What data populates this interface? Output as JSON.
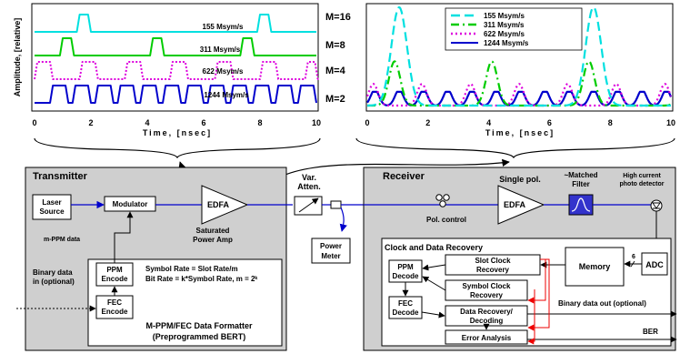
{
  "chart_data": [
    {
      "type": "line",
      "title": "",
      "ylabel": "Amplitude, [relative]",
      "xlabel": "Time, [nsec]",
      "xlim": [
        0,
        10
      ],
      "x_ticks": [
        "0",
        "2",
        "4",
        "6",
        "8",
        "10"
      ],
      "legend": "none",
      "series": [
        {
          "name": "155 Msym/s",
          "m_label": "M=16",
          "color": "#00e0e0",
          "period": 6.4,
          "width": 0.4,
          "first": 1.55
        },
        {
          "name": "311 Msym/s",
          "m_label": "M=8",
          "color": "#00cc00",
          "period": 3.2,
          "width": 0.4,
          "first": 0.95
        },
        {
          "name": "622 Msym/s",
          "m_label": "M=4",
          "color": "#dd00dd",
          "period": 1.6,
          "width": 0.55,
          "first": 0.05
        },
        {
          "name": "1244 Msym/s",
          "m_label": "M=2",
          "color": "#0000cc",
          "period": 0.8,
          "width": 0.55,
          "first": 0.6
        }
      ]
    },
    {
      "type": "line",
      "title": "",
      "xlabel": "Time, [nsec]",
      "xlim": [
        0,
        10
      ],
      "x_ticks": [
        "0",
        "2",
        "4",
        "6",
        "8",
        "10"
      ],
      "legend": "top-right",
      "series": [
        {
          "name": "155 Msym/s",
          "color": "#00e0e0",
          "dash": "10,5",
          "peak": 1.0,
          "period": 6.4,
          "first": 1.05
        },
        {
          "name": "311 Msym/s",
          "color": "#00cc00",
          "dash": "9,4,2,4",
          "peak": 0.45,
          "period": 3.2,
          "first": 0.9
        },
        {
          "name": "622 Msym/s",
          "color": "#dd00dd",
          "dash": "2,3",
          "peak": 0.22,
          "period": 1.6,
          "first": 0.2
        },
        {
          "name": "1244 Msym/s",
          "color": "#0000cc",
          "dash": "",
          "peak": 0.14,
          "period": 0.8,
          "first": 0.25
        }
      ]
    }
  ],
  "diagram": {
    "transmitter": {
      "title": "Transmitter",
      "laser": [
        "Laser",
        "Source"
      ],
      "modulator": "Modulator",
      "edfa": "EDFA",
      "saturated": [
        "Saturated",
        "Power Amp"
      ],
      "mppm_data": "m-PPM data",
      "binary_in": [
        "Binary data",
        "in (optional)"
      ],
      "ppm_encode": [
        "PPM",
        "Encode"
      ],
      "fec_encode": [
        "FEC",
        "Encode"
      ],
      "symbol_rate": "Symbol Rate = Slot Rate/m",
      "bit_rate": "Bit Rate = k*Symbol Rate, m = 2ᵏ",
      "formatter": [
        "M-PPM/FEC Data Formatter",
        "(Preprogrammed BERT)"
      ]
    },
    "link": {
      "attenuator": [
        "Var.",
        "Atten."
      ],
      "power_meter": [
        "Power",
        "Meter"
      ]
    },
    "receiver": {
      "title": "Receiver",
      "pol_control": "Pol. control",
      "single_pol": "Single pol.",
      "edfa": "EDFA",
      "matched_filter": [
        "~Matched",
        "Filter"
      ],
      "detector": [
        "High current",
        "photo detector"
      ],
      "cdr_title": "Clock and Data Recovery",
      "slot_clock": [
        "Slot Clock",
        "Recovery"
      ],
      "symbol_clock": [
        "Symbol Clock",
        "Recovery"
      ],
      "memory": "Memory",
      "adc": "ADC",
      "bus": "6",
      "ppm_decode": [
        "PPM",
        "Decode"
      ],
      "fec_decode": [
        "FEC",
        "Decode"
      ],
      "data_recovery": [
        "Data Recovery/",
        "Decoding"
      ],
      "error_analysis": "Error Analysis",
      "binary_out": "Binary data out (optional)",
      "ber": "BER"
    }
  }
}
